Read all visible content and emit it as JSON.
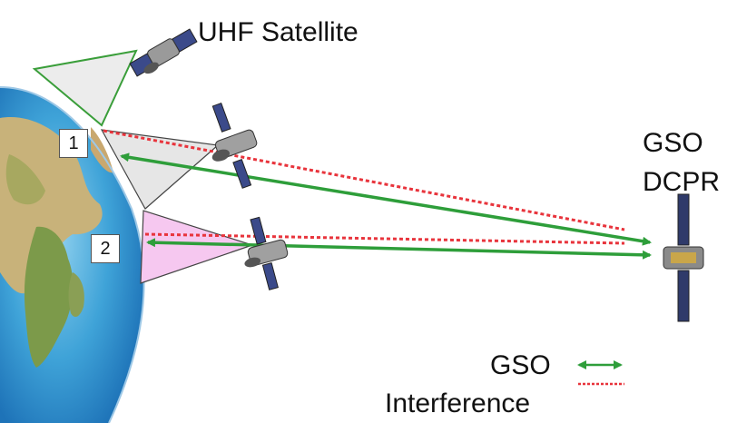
{
  "labels": {
    "uhf_satellite": "UHF Satellite",
    "gso_dcpr_line1": "GSO",
    "gso_dcpr_line2": "DCPR",
    "zone_1": "1",
    "zone_2": "2"
  },
  "legend": {
    "gso": "GSO",
    "interference": "Interference"
  },
  "colors": {
    "gso_link": "#2e9e3a",
    "interference": "#e8343c",
    "footprint_uhf": "#e6e6e6",
    "footprint_zone2": "#f6c8f0"
  },
  "icons": {
    "satellite": "satellite-icon",
    "earth": "earth-globe"
  }
}
